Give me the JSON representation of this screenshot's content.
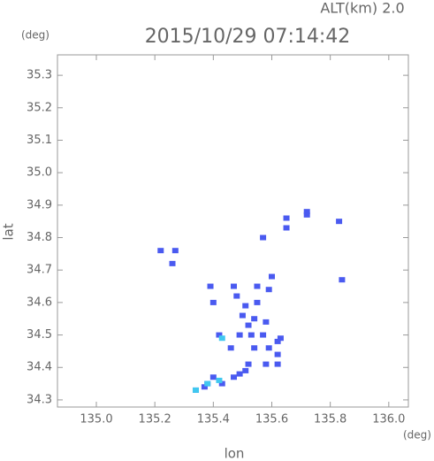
{
  "chart_data": {
    "type": "scatter",
    "header": "ALT(km) 2.0",
    "title": "2015/10/29 07:14:42",
    "ylabel_unit": "(deg)",
    "xlabel_unit": "(deg)",
    "xlabel": "lon",
    "ylabel": "lat",
    "xlim": [
      134.867,
      136.067
    ],
    "ylim": [
      34.278,
      35.363
    ],
    "xticks": [
      {
        "value": 135,
        "label": "135.0"
      },
      135.2,
      135.4,
      135.6,
      135.8,
      {
        "value": 136,
        "label": "136.0"
      }
    ],
    "yticks": [
      34.3,
      34.4,
      34.5,
      34.6,
      34.7,
      34.8,
      34.9,
      {
        "value": 35,
        "label": "35.0"
      },
      35.1,
      35.2,
      35.3
    ],
    "series": [
      {
        "color": "#4a5af0",
        "x": [
          135.72,
          135.72,
          135.83,
          135.65,
          135.57,
          135.65,
          135.22,
          135.27,
          135.26,
          135.39,
          135.47,
          135.48,
          135.4,
          135.6,
          135.55,
          135.59,
          135.84,
          135.51,
          135.55,
          135.5,
          135.52,
          135.54,
          135.49,
          135.53,
          135.57,
          135.62,
          135.63,
          135.59,
          135.58,
          135.52,
          135.49,
          135.51,
          135.62,
          135.62,
          135.58,
          135.46,
          135.42,
          135.54,
          135.4,
          135.47,
          135.43,
          135.38,
          135.37,
          135.34
        ],
        "y": [
          34.88,
          34.87,
          34.85,
          34.86,
          34.8,
          34.83,
          34.76,
          34.76,
          34.72,
          34.65,
          34.65,
          34.62,
          34.6,
          34.68,
          34.65,
          34.64,
          34.67,
          34.59,
          34.6,
          34.56,
          34.53,
          34.55,
          34.5,
          34.5,
          34.5,
          34.48,
          34.49,
          34.46,
          34.41,
          34.41,
          34.38,
          34.39,
          34.41,
          34.44,
          34.54,
          34.46,
          34.5,
          34.46,
          34.37,
          34.37,
          34.35,
          34.35,
          34.34,
          34.33
        ]
      },
      {
        "color": "#40c8f0",
        "x": [
          135.43,
          135.38,
          135.42,
          135.34
        ],
        "y": [
          34.49,
          34.35,
          34.36,
          34.33
        ]
      }
    ]
  }
}
